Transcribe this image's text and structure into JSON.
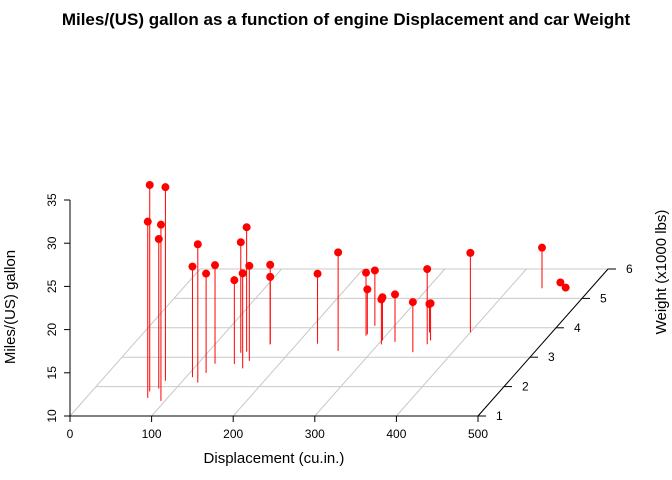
{
  "chart_data": {
    "type": "scatter",
    "title": "Miles/(US) gallon as a function of engine Displacement and car Weight",
    "xlabel": "Displacement (cu.in.)",
    "ylabel": "Weight (x1000 lbs)",
    "zlabel": "Miles/(US) gallon",
    "xlim": [
      0,
      500
    ],
    "ylim": [
      1,
      6
    ],
    "zlim": [
      10,
      35
    ],
    "x_ticks": [
      "0",
      "100",
      "200",
      "300",
      "400",
      "500"
    ],
    "y_ticks": [
      "1",
      "2",
      "3",
      "4",
      "5",
      "6"
    ],
    "z_ticks": [
      "10",
      "15",
      "20",
      "25",
      "30",
      "35"
    ],
    "grid": true,
    "point_color": "#ff0000",
    "drop_lines": true,
    "points": [
      {
        "x": 160,
        "y": 2.62,
        "z": 21.0
      },
      {
        "x": 160,
        "y": 2.875,
        "z": 21.0
      },
      {
        "x": 108,
        "y": 2.32,
        "z": 22.8
      },
      {
        "x": 258,
        "y": 3.215,
        "z": 21.4
      },
      {
        "x": 360,
        "y": 3.44,
        "z": 18.7
      },
      {
        "x": 225,
        "y": 3.46,
        "z": 18.1
      },
      {
        "x": 360,
        "y": 3.57,
        "z": 14.3
      },
      {
        "x": 146.7,
        "y": 3.19,
        "z": 24.4
      },
      {
        "x": 140.8,
        "y": 3.15,
        "z": 22.8
      },
      {
        "x": 167.6,
        "y": 3.44,
        "z": 19.2
      },
      {
        "x": 167.6,
        "y": 3.44,
        "z": 17.8
      },
      {
        "x": 275.8,
        "y": 4.07,
        "z": 16.4
      },
      {
        "x": 275.8,
        "y": 3.73,
        "z": 17.3
      },
      {
        "x": 275.8,
        "y": 3.78,
        "z": 15.2
      },
      {
        "x": 472,
        "y": 5.25,
        "z": 10.4
      },
      {
        "x": 460,
        "y": 5.424,
        "z": 10.4
      },
      {
        "x": 440,
        "y": 5.345,
        "z": 14.7
      },
      {
        "x": 78.7,
        "y": 2.2,
        "z": 32.4
      },
      {
        "x": 75.7,
        "y": 1.615,
        "z": 30.4
      },
      {
        "x": 71.1,
        "y": 1.835,
        "z": 33.9
      },
      {
        "x": 120.1,
        "y": 2.465,
        "z": 21.5
      },
      {
        "x": 318,
        "y": 3.52,
        "z": 15.5
      },
      {
        "x": 304,
        "y": 3.435,
        "z": 15.2
      },
      {
        "x": 350,
        "y": 3.84,
        "z": 13.3
      },
      {
        "x": 400,
        "y": 3.845,
        "z": 19.2
      },
      {
        "x": 79,
        "y": 1.935,
        "z": 27.3
      },
      {
        "x": 120.3,
        "y": 2.14,
        "z": 26.0
      },
      {
        "x": 95.1,
        "y": 1.513,
        "z": 30.4
      },
      {
        "x": 351,
        "y": 3.17,
        "z": 15.8
      },
      {
        "x": 145,
        "y": 2.77,
        "z": 19.7
      },
      {
        "x": 301,
        "y": 3.57,
        "z": 15.0
      },
      {
        "x": 121,
        "y": 2.78,
        "z": 21.4
      }
    ]
  }
}
